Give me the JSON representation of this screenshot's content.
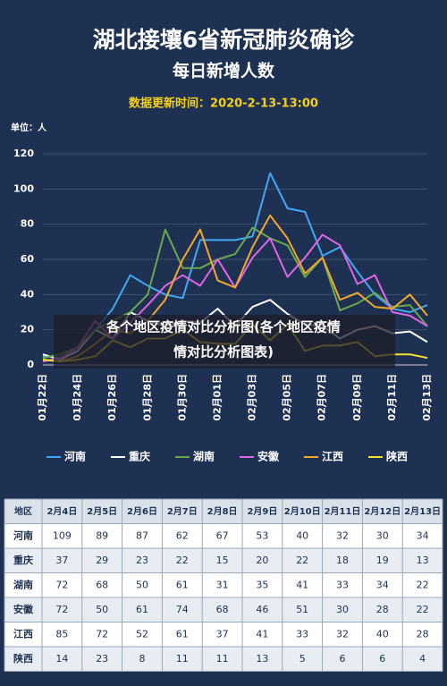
{
  "chart_data": {
    "type": "line",
    "title": "湖北接壤6省新冠肺炎确诊",
    "subtitle": "每日新增人数",
    "update_time": "数据更新时间：2020-2-13-13:00",
    "unit_label": "单位：人",
    "overlay_caption": [
      "各个地区疫情对比分析图(各个地区疫情",
      "情对比分析图表)"
    ],
    "categories": [
      "01月22日",
      null,
      "01月24日",
      null,
      "01月26日",
      null,
      "01月28日",
      null,
      "01月30日",
      null,
      "02月01日",
      null,
      "02月03日",
      null,
      "02月05日",
      null,
      "02月07日",
      null,
      "02月09日",
      null,
      "02月11日",
      null,
      "02月13日"
    ],
    "ylim": [
      0,
      120
    ],
    "yticks": [
      0,
      20,
      40,
      60,
      80,
      100,
      120
    ],
    "grid": true,
    "series": [
      {
        "name": "河南",
        "color": "#3fa9f5",
        "values": [
          5,
          4,
          8,
          20,
          32,
          51,
          45,
          40,
          38,
          71,
          71,
          71,
          73,
          109,
          89,
          87,
          62,
          67,
          53,
          40,
          32,
          30,
          34
        ]
      },
      {
        "name": "重庆",
        "color": "#ffffff",
        "values": [
          6,
          3,
          8,
          20,
          15,
          30,
          25,
          22,
          25,
          24,
          32,
          22,
          33,
          37,
          29,
          23,
          22,
          15,
          20,
          22,
          18,
          19,
          13
        ]
      },
      {
        "name": "湖南",
        "color": "#6aa84f",
        "values": [
          4,
          6,
          10,
          20,
          25,
          30,
          40,
          77,
          55,
          55,
          60,
          63,
          78,
          72,
          68,
          50,
          61,
          31,
          35,
          41,
          33,
          34,
          22
        ]
      },
      {
        "name": "安徽",
        "color": "#e066e6",
        "values": [
          2,
          4,
          10,
          25,
          15,
          24,
          34,
          45,
          51,
          45,
          60,
          44,
          61,
          72,
          50,
          61,
          74,
          68,
          46,
          51,
          30,
          28,
          22
        ]
      },
      {
        "name": "江西",
        "color": "#f0a830",
        "values": [
          3,
          2,
          5,
          12,
          20,
          18,
          25,
          37,
          60,
          77,
          48,
          44,
          67,
          85,
          72,
          52,
          61,
          37,
          41,
          33,
          32,
          40,
          28
        ]
      },
      {
        "name": "陕西",
        "color": "#f5e030",
        "values": [
          3,
          2,
          3,
          5,
          14,
          10,
          15,
          15,
          20,
          13,
          12,
          12,
          23,
          14,
          23,
          8,
          11,
          11,
          13,
          5,
          6,
          6,
          4
        ]
      }
    ]
  },
  "table": {
    "header": [
      "地区",
      "2月4日",
      "2月5日",
      "2月6日",
      "2月7日",
      "2月8日",
      "2月9日",
      "2月10日",
      "2月11日",
      "2月12日",
      "2月13日"
    ],
    "rows": [
      [
        "河南",
        109,
        89,
        87,
        62,
        67,
        53,
        40,
        32,
        30,
        34
      ],
      [
        "重庆",
        37,
        29,
        23,
        22,
        15,
        20,
        22,
        18,
        19,
        13
      ],
      [
        "湖南",
        72,
        68,
        50,
        61,
        31,
        35,
        41,
        33,
        34,
        22
      ],
      [
        "安徽",
        72,
        50,
        61,
        74,
        68,
        46,
        51,
        30,
        28,
        22
      ],
      [
        "江西",
        85,
        72,
        52,
        61,
        37,
        41,
        33,
        32,
        40,
        28
      ],
      [
        "陕西",
        14,
        23,
        8,
        11,
        11,
        13,
        5,
        6,
        6,
        4
      ]
    ]
  }
}
